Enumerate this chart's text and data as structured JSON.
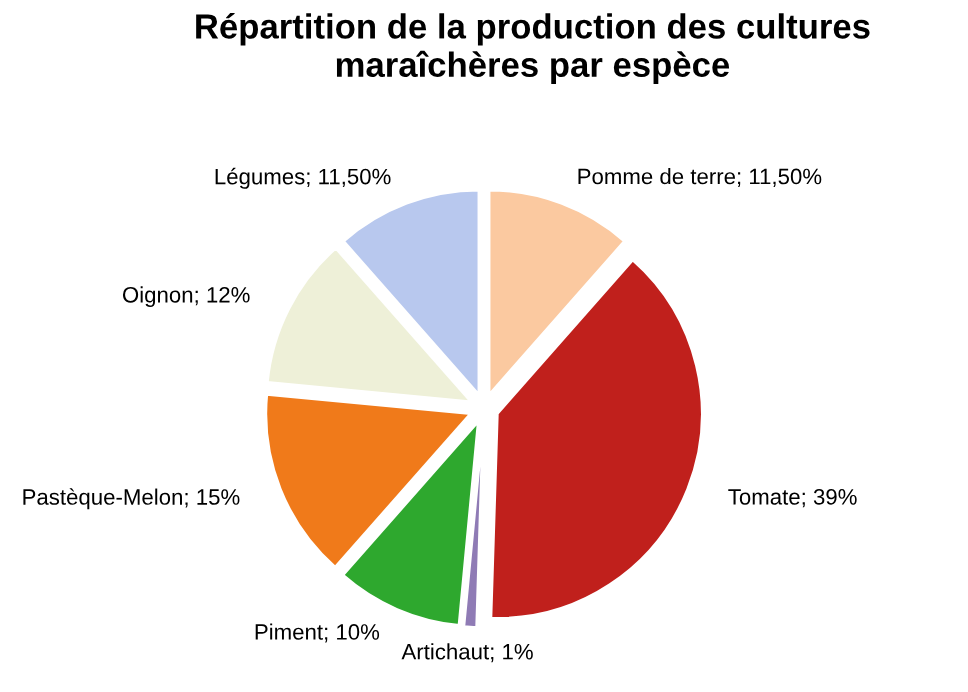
{
  "chart_data": {
    "type": "pie",
    "title": "Répartition de la production des cultures maraîchères par espèce",
    "categories": [
      "Pomme de terre",
      "Tomate",
      "Artichaut",
      "Piment",
      "Pastèque-Melon",
      "Oignon",
      "Légumes"
    ],
    "values": [
      11.5,
      39,
      1,
      10,
      15,
      12,
      11.5
    ],
    "value_labels": [
      "11,50%",
      "39%",
      "1%",
      "10%",
      "15%",
      "12%",
      "11,50%"
    ],
    "colors": [
      "#fbc9a0",
      "#c0201c",
      "#8f7bb5",
      "#2ea82e",
      "#f07a1a",
      "#eef0d8",
      "#b8c8ee"
    ],
    "legend": false
  }
}
